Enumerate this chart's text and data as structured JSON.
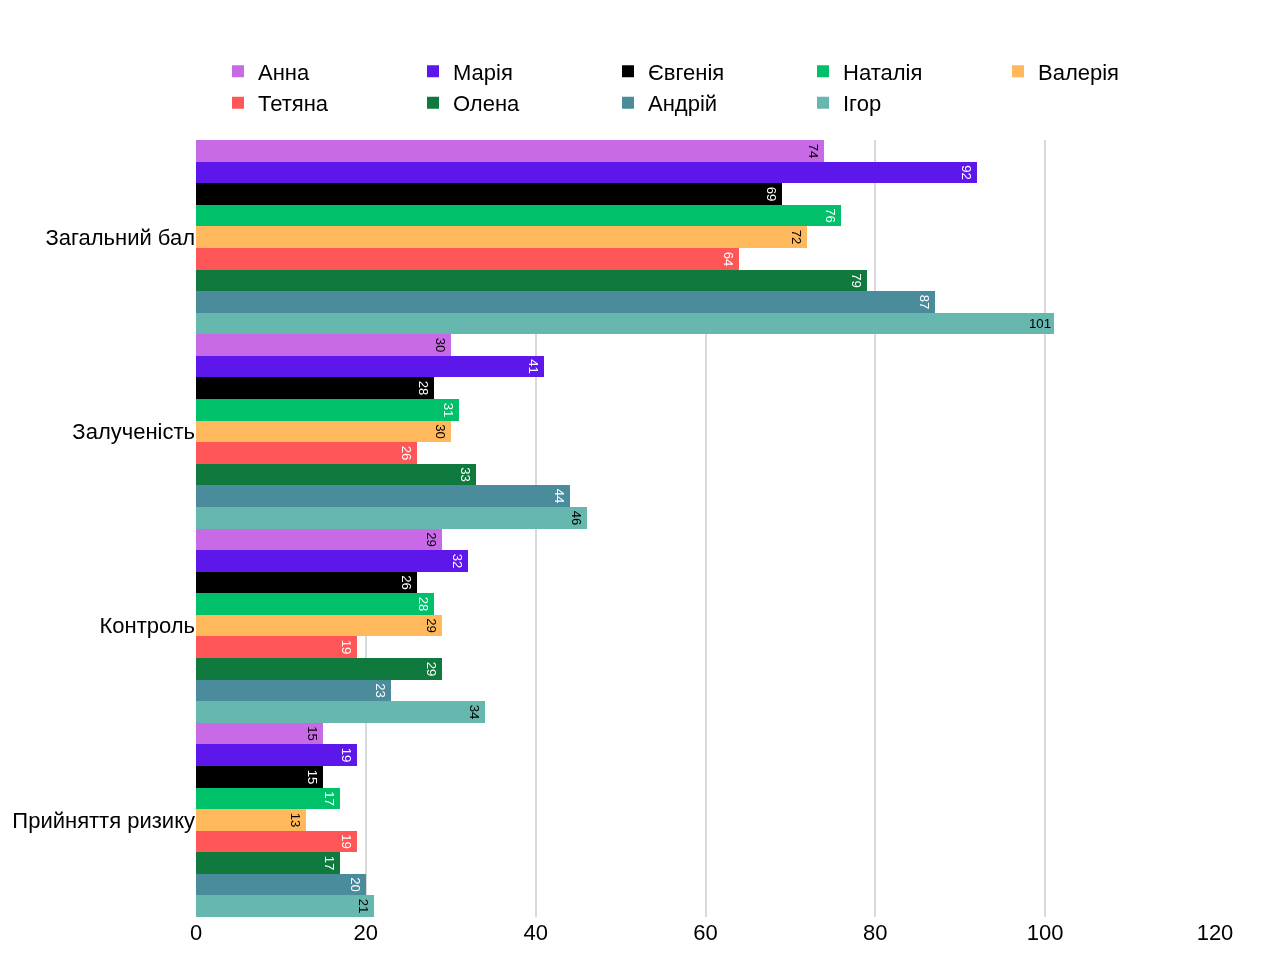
{
  "chart_data": {
    "type": "bar",
    "orientation": "horizontal",
    "categories": [
      "Загальний бал",
      "Залученість",
      "Контроль",
      "Прийняття ризику"
    ],
    "series": [
      {
        "name": "Анна",
        "color": "#c86ae6",
        "values": [
          74,
          30,
          29,
          15
        ]
      },
      {
        "name": "Марія",
        "color": "#5e17eb",
        "values": [
          92,
          41,
          32,
          19
        ]
      },
      {
        "name": "Євгенія",
        "color": "#000000",
        "values": [
          69,
          28,
          26,
          15
        ]
      },
      {
        "name": "Наталія",
        "color": "#00c16a",
        "values": [
          76,
          31,
          28,
          17
        ]
      },
      {
        "name": "Валерія",
        "color": "#ffb85c",
        "values": [
          72,
          30,
          29,
          13
        ]
      },
      {
        "name": "Тетяна",
        "color": "#ff5757",
        "values": [
          64,
          26,
          19,
          19
        ]
      },
      {
        "name": "Олена",
        "color": "#107a3e",
        "values": [
          79,
          33,
          29,
          17
        ]
      },
      {
        "name": "Андрій",
        "color": "#4a8c9c",
        "values": [
          87,
          44,
          23,
          20
        ]
      },
      {
        "name": "Ігор",
        "color": "#66b8ae",
        "values": [
          101,
          46,
          34,
          21
        ]
      }
    ],
    "xlim": [
      0,
      120
    ],
    "xticks": [
      0,
      20,
      40,
      60,
      80,
      100,
      120
    ],
    "grid": "x",
    "legend": "top",
    "data_labels": true
  }
}
